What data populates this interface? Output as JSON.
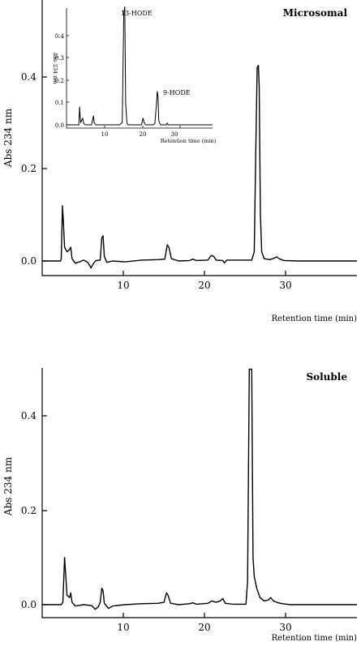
{
  "chart_data": [
    {
      "type": "line",
      "title": "Microsomal",
      "xlabel": "Retention time (min)",
      "ylabel": "Abs 234 nm",
      "xlim": [
        0,
        38
      ],
      "ylim": [
        -0.03,
        0.55
      ],
      "x_ticks": [
        10,
        20,
        30
      ],
      "y_ticks": [
        0.0,
        0.2,
        0.4
      ],
      "x_tick_labels": [
        "10",
        "20",
        "30"
      ],
      "y_tick_labels": [
        "0.0",
        "0.2",
        "0.4"
      ],
      "series": [
        {
          "points": [
            [
              0,
              0
            ],
            [
              2.2,
              0
            ],
            [
              2.3,
              0.005
            ],
            [
              2.45,
              0.12
            ],
            [
              2.55,
              0.09
            ],
            [
              2.7,
              0.03
            ],
            [
              3,
              0.02
            ],
            [
              3.3,
              0.025
            ],
            [
              3.45,
              0.03
            ],
            [
              3.6,
              0.005
            ],
            [
              4,
              -0.005
            ],
            [
              4.5,
              -0.002
            ],
            [
              5,
              0.002
            ],
            [
              5.5,
              -0.003
            ],
            [
              5.9,
              -0.015
            ],
            [
              6.2,
              -0.005
            ],
            [
              6.5,
              0.001
            ],
            [
              7,
              0.002
            ],
            [
              7.2,
              0.05
            ],
            [
              7.35,
              0.055
            ],
            [
              7.5,
              0.01
            ],
            [
              7.8,
              -0.003
            ],
            [
              8.5,
              0
            ],
            [
              10,
              -0.002
            ],
            [
              12,
              0.002
            ],
            [
              14,
              0.003
            ],
            [
              14.8,
              0.004
            ],
            [
              15.1,
              0.035
            ],
            [
              15.3,
              0.03
            ],
            [
              15.6,
              0.005
            ],
            [
              16.5,
              0
            ],
            [
              17.8,
              0.001
            ],
            [
              18.2,
              0.004
            ],
            [
              18.6,
              0.001
            ],
            [
              20,
              0.002
            ],
            [
              20.4,
              0.012
            ],
            [
              20.7,
              0.01
            ],
            [
              21,
              0.002
            ],
            [
              21.8,
              0.001
            ],
            [
              22,
              -0.004
            ],
            [
              22.3,
              0.002
            ],
            [
              24,
              0.002
            ],
            [
              25.3,
              0.002
            ],
            [
              25.6,
              0.02
            ],
            [
              25.8,
              0.25
            ],
            [
              25.95,
              0.42
            ],
            [
              26.1,
              0.425
            ],
            [
              26.2,
              0.38
            ],
            [
              26.35,
              0.1
            ],
            [
              26.5,
              0.02
            ],
            [
              26.8,
              0.005
            ],
            [
              27.5,
              0.003
            ],
            [
              28,
              0.006
            ],
            [
              28.3,
              0.009
            ],
            [
              28.7,
              0.004
            ],
            [
              29.2,
              0.001
            ],
            [
              31,
              0
            ],
            [
              38,
              0
            ]
          ]
        }
      ],
      "inset": {
        "type": "line",
        "ylabel": "Abs 234 nm",
        "xlabel": "Retention time (min)",
        "xlim": [
          0,
          38
        ],
        "ylim": [
          -0.03,
          0.55
        ],
        "x_ticks": [
          10,
          20,
          30
        ],
        "y_ticks": [
          0.0,
          0.1,
          0.2,
          0.3,
          0.4
        ],
        "x_tick_labels": [
          "10",
          "20",
          "30"
        ],
        "y_tick_labels": [
          "0.0",
          "0.1",
          "0.2",
          "0.3",
          "0.4"
        ],
        "annotations": [
          {
            "text": "13-HODE",
            "x": 15.5,
            "y": 0.55
          },
          {
            "text": "9-HODE",
            "x": 26,
            "y": 0.17
          }
        ],
        "series": [
          {
            "points": [
              [
                0,
                0
              ],
              [
                2,
                0
              ],
              [
                3.2,
                0
              ],
              [
                3.4,
                0.08
              ],
              [
                3.55,
                0.04
              ],
              [
                3.7,
                0.01
              ],
              [
                4.2,
                0.03
              ],
              [
                4.5,
                0.005
              ],
              [
                5,
                0
              ],
              [
                6.5,
                0
              ],
              [
                7,
                0.04
              ],
              [
                7.2,
                0.01
              ],
              [
                7.6,
                0
              ],
              [
                9,
                0
              ],
              [
                13,
                0
              ],
              [
                13.8,
                0
              ],
              [
                14.5,
                0.01
              ],
              [
                14.9,
                0.5
              ],
              [
                15.15,
                0.53
              ],
              [
                15.4,
                0.1
              ],
              [
                15.7,
                0.01
              ],
              [
                16,
                0
              ],
              [
                17,
                0
              ],
              [
                19.5,
                0
              ],
              [
                19.9,
                0.03
              ],
              [
                20.2,
                0.01
              ],
              [
                20.6,
                0
              ],
              [
                22.5,
                0
              ],
              [
                23,
                0.005
              ],
              [
                23.4,
                0.09
              ],
              [
                23.6,
                0.15
              ],
              [
                23.8,
                0.13
              ],
              [
                24,
                0.02
              ],
              [
                24.4,
                0
              ],
              [
                26,
                0
              ],
              [
                26.2,
                0.008
              ],
              [
                26.5,
                0
              ],
              [
                38,
                0
              ]
            ]
          }
        ]
      }
    },
    {
      "type": "line",
      "title": "Soluble",
      "xlabel": "Retention time (min)",
      "ylabel": "Abs 234 nm",
      "xlim": [
        0,
        38
      ],
      "ylim": [
        -0.03,
        0.55
      ],
      "x_ticks": [
        10,
        20,
        30
      ],
      "y_ticks": [
        0.0,
        0.2,
        0.4
      ],
      "x_tick_labels": [
        "10",
        "20",
        "30"
      ],
      "y_tick_labels": [
        "0.0",
        "0.2",
        "0.4"
      ],
      "series": [
        {
          "points": [
            [
              0,
              0
            ],
            [
              2.3,
              0
            ],
            [
              2.5,
              0.005
            ],
            [
              2.7,
              0.1
            ],
            [
              2.85,
              0.06
            ],
            [
              3,
              0.02
            ],
            [
              3.3,
              0.015
            ],
            [
              3.45,
              0.025
            ],
            [
              3.6,
              0.005
            ],
            [
              4,
              -0.003
            ],
            [
              5,
              0
            ],
            [
              6,
              -0.002
            ],
            [
              6.4,
              -0.01
            ],
            [
              6.8,
              -0.004
            ],
            [
              7,
              0.005
            ],
            [
              7.2,
              0.035
            ],
            [
              7.35,
              0.03
            ],
            [
              7.5,
              0.003
            ],
            [
              8,
              -0.008
            ],
            [
              8.5,
              -0.003
            ],
            [
              10,
              0
            ],
            [
              12,
              0.002
            ],
            [
              14,
              0.003
            ],
            [
              14.7,
              0.005
            ],
            [
              15,
              0.025
            ],
            [
              15.2,
              0.02
            ],
            [
              15.5,
              0.003
            ],
            [
              16.5,
              0
            ],
            [
              17.8,
              0.002
            ],
            [
              18.2,
              0.004
            ],
            [
              18.6,
              0.001
            ],
            [
              20,
              0.003
            ],
            [
              20.5,
              0.008
            ],
            [
              21,
              0.005
            ],
            [
              21.5,
              0.008
            ],
            [
              21.8,
              0.013
            ],
            [
              22.1,
              0.003
            ],
            [
              23,
              0.001
            ],
            [
              24.6,
              0.001
            ],
            [
              24.8,
              0.05
            ],
            [
              25,
              0.5
            ],
            [
              25.3,
              0.5
            ],
            [
              25.45,
              0.1
            ],
            [
              25.6,
              0.06
            ],
            [
              25.9,
              0.035
            ],
            [
              26.3,
              0.015
            ],
            [
              26.8,
              0.008
            ],
            [
              27.3,
              0.01
            ],
            [
              27.6,
              0.015
            ],
            [
              27.9,
              0.008
            ],
            [
              28.5,
              0.004
            ],
            [
              29,
              0.002
            ],
            [
              30,
              0
            ],
            [
              38,
              0
            ]
          ]
        }
      ]
    }
  ]
}
